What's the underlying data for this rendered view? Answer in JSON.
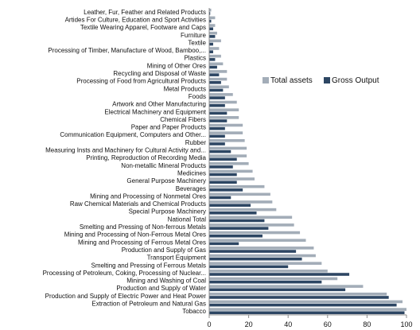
{
  "chart_data": {
    "type": "bar",
    "orientation": "horizontal",
    "title": "",
    "xlabel": "",
    "ylabel": "",
    "xlim": [
      0,
      100
    ],
    "xticks": [
      0,
      20,
      40,
      60,
      80,
      100
    ],
    "grid": false,
    "legend_position": "right",
    "categories": [
      "Leather, Fur, Feather and Related Products",
      "Artides For Culture, Education and Sport Activities",
      "Textile Wearing Apparel, Footware and Caps",
      "Furniture",
      "Textile",
      "Processing of Timber, Manufacture of Wood, Bamboo,...",
      "Plastics",
      "Mining of Other Ores",
      "Recycling and Disposal of Waste",
      "Processing of Food from Agricultural Products",
      "Metal Products",
      "Foods",
      "Artwork and Other Manufacturing",
      "Electrical Machinery and Equipment",
      "Chemical Fibers",
      "Paper and Paper Products",
      "Communication Equipment, Computers and Other...",
      "Rubber",
      "Measuring Insts and Machinery for Cultural Activity and...",
      "Printing, Reproduction of Recording Media",
      "Non-metallic Mineral Products",
      "Medicines",
      "General Purpose Machinery",
      "Beverages",
      "Mining and Processing of Nonmetal Ores",
      "Raw Chemical Materials and Chemical Products",
      "Special Purpose Machinery",
      "National Total",
      "Smelting and Pressing of Non-ferrous Metals",
      "Mining and Processing of Non-Ferrous Metal Ores",
      "Mining and Processing of Ferrous Metal Ores",
      "Production and Supply of Gas",
      "Transport Equipment",
      "Smelting and Pressing of Ferrous Metals",
      "Processing of Petroleum, Coking, Processing of Nuclear...",
      "Mining and Washing of Coal",
      "Production and Supply of Water",
      "Production and Supply of Electric Power and Heat Power",
      "Extraction of Petroleum and Natural Gas",
      "Tobacco"
    ],
    "series": [
      {
        "name": "Total assets",
        "color": "#a3adb8",
        "values": [
          1,
          3,
          3,
          4,
          6,
          5,
          6,
          7,
          9,
          9,
          10,
          12,
          14,
          15,
          15,
          17,
          17,
          18,
          19,
          19,
          20,
          22,
          23,
          28,
          31,
          32,
          34,
          42,
          43,
          46,
          49,
          53,
          54,
          57,
          60,
          65,
          78,
          90,
          98,
          100
        ]
      },
      {
        "name": "Gross Output",
        "color": "#2d4663",
        "values": [
          0.5,
          1,
          2,
          3,
          2,
          2,
          3,
          4,
          5,
          6,
          7,
          8,
          8,
          9,
          9,
          8,
          8,
          8,
          11,
          14,
          12,
          14,
          14,
          17,
          11,
          21,
          24,
          28,
          30,
          27,
          15,
          44,
          47,
          40,
          71,
          57,
          69,
          91,
          95,
          99
        ]
      }
    ]
  }
}
